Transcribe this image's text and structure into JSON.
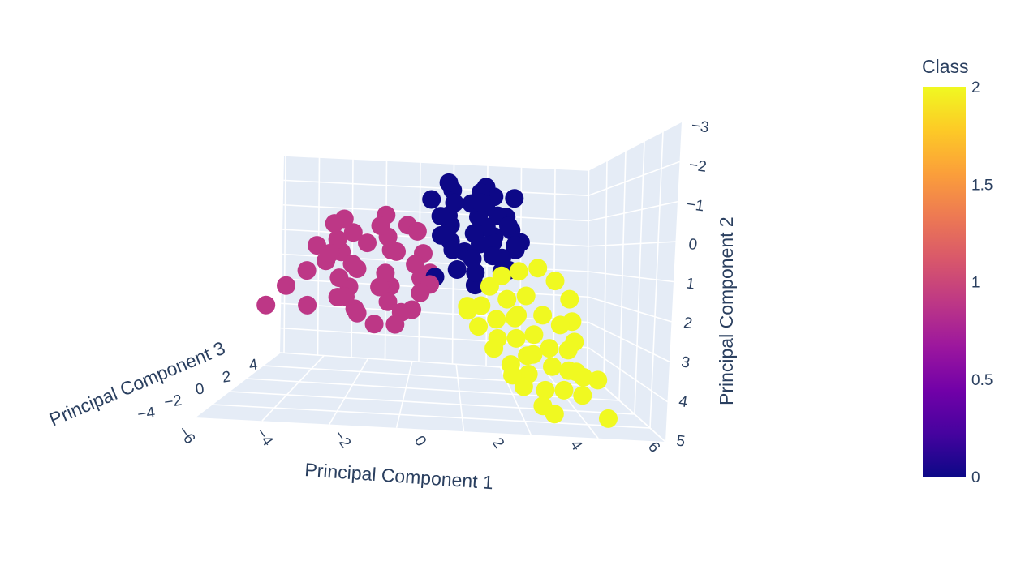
{
  "chart_data": {
    "type": "scatter3d",
    "axes": {
      "x": {
        "label": "Principal Component 1",
        "ticks": [
          -6,
          -4,
          -2,
          0,
          2,
          4,
          6
        ]
      },
      "y": {
        "label": "Principal Component 2",
        "ticks": [
          -3,
          -2,
          -1,
          0,
          1,
          2,
          3,
          4,
          5
        ],
        "reversed": true
      },
      "z": {
        "label": "Principal Component 3",
        "ticks": [
          -4,
          -2,
          0,
          2,
          4
        ]
      }
    },
    "colorbar": {
      "title": "Class",
      "range": [
        0,
        2
      ],
      "ticks": [
        "0",
        "0.5",
        "1",
        "1.5",
        "2"
      ],
      "colorscale": [
        "#0d0887",
        "#46039f",
        "#7201a8",
        "#9c179e",
        "#bd3786",
        "#d8576b",
        "#ed7953",
        "#fb9f3a",
        "#fdca26",
        "#f0f921"
      ]
    },
    "series": [
      {
        "class": 0,
        "color": "#0d0887",
        "points": [
          [
            -0.6,
            -2.6,
            0.2
          ],
          [
            -0.3,
            -2.5,
            0.6
          ],
          [
            0.1,
            -2.3,
            -0.1
          ],
          [
            0.4,
            -2.6,
            0.3
          ],
          [
            0.9,
            -2.5,
            0.9
          ],
          [
            -0.4,
            -2.0,
            0.2
          ],
          [
            0.0,
            -1.9,
            -0.4
          ],
          [
            0.5,
            -2.0,
            0.4
          ],
          [
            1.0,
            -1.9,
            0.8
          ],
          [
            1.4,
            -2.0,
            1.2
          ],
          [
            -0.8,
            -1.5,
            0.0
          ],
          [
            -0.3,
            -1.4,
            0.5
          ],
          [
            0.2,
            -1.6,
            0.1
          ],
          [
            0.7,
            -1.5,
            0.7
          ],
          [
            1.2,
            -1.4,
            1.3
          ],
          [
            1.7,
            -1.7,
            1.5
          ],
          [
            2.0,
            -1.2,
            1.8
          ],
          [
            -0.6,
            -1.0,
            0.3
          ],
          [
            0.0,
            -1.0,
            -0.2
          ],
          [
            0.5,
            -0.9,
            0.5
          ],
          [
            1.0,
            -1.1,
            0.9
          ],
          [
            1.5,
            -0.8,
            1.4
          ],
          [
            -0.4,
            -0.5,
            0.0
          ],
          [
            0.3,
            -0.4,
            0.4
          ],
          [
            0.9,
            -0.6,
            0.6
          ],
          [
            1.4,
            -0.3,
            1.1
          ],
          [
            -0.1,
            0.0,
            0.3
          ],
          [
            0.6,
            -0.1,
            0.8
          ],
          [
            1.8,
            -0.5,
            1.6
          ],
          [
            2.2,
            -1.5,
            2.0
          ],
          [
            0.3,
            -2.2,
            0.8
          ],
          [
            -0.2,
            -1.8,
            0.9
          ],
          [
            0.8,
            -1.3,
            -0.3
          ],
          [
            1.1,
            -2.3,
            0.2
          ],
          [
            -0.9,
            -2.1,
            0.4
          ],
          [
            0.4,
            -0.8,
            1.1
          ],
          [
            1.3,
            -0.9,
            0.3
          ],
          [
            -0.5,
            0.2,
            0.6
          ],
          [
            0.9,
            0.1,
            1.4
          ],
          [
            0.2,
            -1.2,
            1.5
          ]
        ]
      },
      {
        "class": 1,
        "color": "#bd3786",
        "points": [
          [
            -3.0,
            -1.3,
            0.5
          ],
          [
            -2.6,
            -1.0,
            0.8
          ],
          [
            -2.2,
            -1.1,
            0.2
          ],
          [
            -1.8,
            -0.9,
            0.6
          ],
          [
            -1.3,
            -1.0,
            0.1
          ],
          [
            -3.2,
            -0.6,
            0.3
          ],
          [
            -2.8,
            -0.4,
            0.9
          ],
          [
            -2.4,
            -0.6,
            0.4
          ],
          [
            -2.0,
            -0.3,
            -0.1
          ],
          [
            -1.5,
            -0.5,
            0.7
          ],
          [
            -1.0,
            -0.4,
            0.3
          ],
          [
            -3.3,
            0.0,
            0.6
          ],
          [
            -2.9,
            0.2,
            0.0
          ],
          [
            -2.4,
            0.1,
            0.8
          ],
          [
            -1.9,
            0.3,
            0.3
          ],
          [
            -1.4,
            0.1,
            -0.2
          ],
          [
            -0.9,
            0.3,
            0.5
          ],
          [
            -3.1,
            0.6,
            0.2
          ],
          [
            -2.6,
            0.7,
            0.7
          ],
          [
            -2.1,
            0.8,
            0.1
          ],
          [
            -1.6,
            0.6,
            0.6
          ],
          [
            -1.1,
            0.9,
            0.0
          ],
          [
            -0.7,
            0.5,
            0.4
          ],
          [
            -2.8,
            1.1,
            0.4
          ],
          [
            -2.3,
            1.3,
            0.9
          ],
          [
            -1.8,
            1.2,
            0.2
          ],
          [
            -1.3,
            1.4,
            0.5
          ],
          [
            -0.9,
            1.2,
            0.8
          ],
          [
            -2.5,
            1.6,
            0.3
          ],
          [
            -1.9,
            1.8,
            0.6
          ],
          [
            -4.3,
            0.7,
            -0.6
          ],
          [
            -4.6,
            1.1,
            -0.2
          ],
          [
            -3.9,
            0.2,
            -0.9
          ],
          [
            -4.1,
            1.7,
            -0.4
          ],
          [
            -5.6,
            2.1,
            -1.4
          ],
          [
            -3.6,
            -0.9,
            -0.3
          ],
          [
            -3.4,
            1.4,
            -0.5
          ],
          [
            -1.2,
            -1.4,
            0.9
          ],
          [
            -2.0,
            -1.5,
            0.4
          ],
          [
            -0.5,
            0.0,
            0.9
          ],
          [
            -3.8,
            -0.3,
            0.1
          ],
          [
            -1.6,
            1.9,
            0.1
          ]
        ]
      },
      {
        "class": 2,
        "color": "#f0f921",
        "points": [
          [
            1.0,
            0.1,
            0.2
          ],
          [
            1.6,
            -0.2,
            0.6
          ],
          [
            2.3,
            -0.5,
            1.1
          ],
          [
            3.0,
            -0.3,
            1.6
          ],
          [
            3.6,
            0.1,
            2.0
          ],
          [
            0.5,
            0.6,
            -0.3
          ],
          [
            1.2,
            0.8,
            0.2
          ],
          [
            1.9,
            0.5,
            0.7
          ],
          [
            2.6,
            0.9,
            1.2
          ],
          [
            3.3,
            1.0,
            1.7
          ],
          [
            0.2,
            1.3,
            -0.6
          ],
          [
            0.9,
            1.5,
            0.0
          ],
          [
            1.6,
            1.2,
            0.4
          ],
          [
            2.3,
            1.6,
            0.9
          ],
          [
            3.0,
            1.8,
            1.5
          ],
          [
            3.8,
            1.6,
            2.2
          ],
          [
            0.1,
            2.0,
            -0.8
          ],
          [
            0.8,
            2.2,
            -0.4
          ],
          [
            1.5,
            2.0,
            0.1
          ],
          [
            2.2,
            2.3,
            0.6
          ],
          [
            2.9,
            2.5,
            1.0
          ],
          [
            3.6,
            2.4,
            1.6
          ],
          [
            4.4,
            2.3,
            2.5
          ],
          [
            5.0,
            2.2,
            3.0
          ],
          [
            0.6,
            2.6,
            -0.7
          ],
          [
            1.3,
            2.9,
            -0.2
          ],
          [
            2.0,
            3.0,
            0.3
          ],
          [
            2.7,
            3.3,
            0.8
          ],
          [
            3.4,
            3.1,
            1.3
          ],
          [
            4.2,
            3.0,
            2.0
          ],
          [
            5.6,
            3.2,
            3.5
          ],
          [
            1.6,
            3.6,
            -0.4
          ],
          [
            2.5,
            3.9,
            0.4
          ],
          [
            3.0,
            4.0,
            0.8
          ],
          [
            -0.3,
            1.6,
            -1.0
          ],
          [
            4.0,
            0.6,
            2.6
          ],
          [
            4.3,
            1.1,
            3.0
          ],
          [
            1.1,
            3.4,
            -0.8
          ],
          [
            2.0,
            1.0,
            1.4
          ],
          [
            3.2,
            2.8,
            0.3
          ],
          [
            0.4,
            1.0,
            0.6
          ],
          [
            2.6,
            2.0,
            1.8
          ]
        ]
      }
    ]
  }
}
